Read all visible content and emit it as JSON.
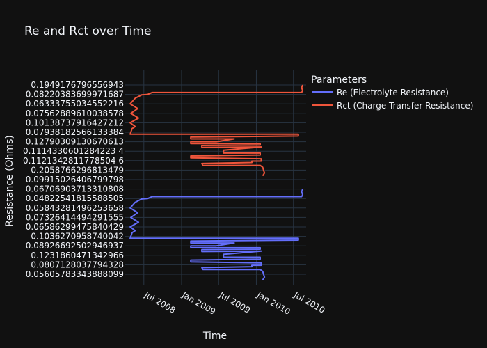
{
  "chart_data": {
    "type": "line",
    "title": "Re and Rct over Time",
    "xlabel": "Time",
    "ylabel": "Resistance (Ohms)",
    "legend_title": "Parameters",
    "legend_position": "top-right",
    "grid": true,
    "y_type": "category",
    "x_type": "date",
    "xlim": [
      "2008-04-01",
      "2010-09-01"
    ],
    "x_ticks": [
      "2008-07-01",
      "2009-01-01",
      "2009-07-01",
      "2010-01-01",
      "2010-07-01"
    ],
    "x_tick_labels": [
      "Jul 2008",
      "Jan 2009",
      "Jul 2009",
      "Jan 2010",
      "Jul 2010"
    ],
    "y_tick_labels": [
      "0.1949176796556943",
      "0.08220383699971687",
      "0.06333755034552216",
      "0.07562889610038578",
      "0.10138737916427212",
      "0.07938182566133384",
      "0.12790309130670613",
      "0.1114330601284223 4",
      "0.1121342811778504 6",
      "0.2058766296813479",
      "0.09915026406799798",
      "0.06706903713310808",
      "0.04822541815588505",
      "0.05843281496253658",
      "0.07326414494291555",
      "0.06586299475840429",
      "0.1036270958740042",
      "0.08926692502946937",
      "0.1231860471342966",
      "0.0807128037794328",
      "0.05605783343888099"
    ],
    "series": [
      {
        "name": "Re (Electrolyte Resistance)",
        "color": "#636efa",
        "path": [
          [
            "2010-08-15",
            11
          ],
          [
            "2010-08-10",
            11.3
          ],
          [
            "2010-08-15",
            11.6
          ],
          [
            "2010-08-10",
            11.8
          ],
          [
            "2008-08-10",
            11.8
          ],
          [
            "2008-07-20",
            12
          ],
          [
            "2008-06-20",
            12.05
          ],
          [
            "2008-05-20",
            12.4
          ],
          [
            "2008-04-25",
            13
          ],
          [
            "2008-06-01",
            13.5
          ],
          [
            "2008-04-28",
            14
          ],
          [
            "2008-06-05",
            14.5
          ],
          [
            "2008-04-25",
            15
          ],
          [
            "2008-05-20",
            15.4
          ],
          [
            "2008-05-05",
            15.6
          ],
          [
            "2008-04-25",
            16.2
          ],
          [
            "2010-07-25",
            16.2
          ],
          [
            "2010-07-25",
            16.4
          ],
          [
            "2009-02-15",
            16.5
          ],
          [
            "2009-02-15",
            16.7
          ],
          [
            "2009-09-15",
            16.7
          ],
          [
            "2009-06-20",
            17.0
          ],
          [
            "2009-02-15",
            17.0
          ],
          [
            "2009-02-15",
            17.2
          ],
          [
            "2010-01-20",
            17.2
          ],
          [
            "2010-01-20",
            17.35
          ],
          [
            "2009-04-10",
            17.4
          ],
          [
            "2009-04-10",
            17.6
          ],
          [
            "2010-01-25",
            17.55
          ],
          [
            "2009-07-25",
            17.9
          ],
          [
            "2009-07-25",
            18.2
          ],
          [
            "2010-01-20",
            18.2
          ],
          [
            "2010-01-20",
            18.4
          ],
          [
            "2009-02-15",
            18.5
          ],
          [
            "2009-02-15",
            18.7
          ],
          [
            "2010-01-25",
            18.8
          ],
          [
            "2010-01-25",
            19.05
          ],
          [
            "2009-12-10",
            19.05
          ],
          [
            "2009-12-10",
            19.2
          ],
          [
            "2009-04-10",
            19.3
          ],
          [
            "2009-04-15",
            19.5
          ],
          [
            "2010-01-20",
            19.5
          ],
          [
            "2010-02-01",
            19.7
          ],
          [
            "2010-02-05",
            20.0
          ],
          [
            "2010-02-10",
            20.3
          ],
          [
            "2010-02-01",
            20.6
          ]
        ]
      },
      {
        "name": "Rct (Charge Transfer Resistance)",
        "color": "#ef553b",
        "path": [
          [
            "2010-08-15",
            0
          ],
          [
            "2010-08-10",
            0.3
          ],
          [
            "2010-08-15",
            0.6
          ],
          [
            "2010-08-10",
            0.8
          ],
          [
            "2008-08-10",
            0.8
          ],
          [
            "2008-07-20",
            1
          ],
          [
            "2008-06-20",
            1.05
          ],
          [
            "2008-05-20",
            1.4
          ],
          [
            "2008-04-25",
            2
          ],
          [
            "2008-06-01",
            2.5
          ],
          [
            "2008-04-28",
            3
          ],
          [
            "2008-06-05",
            3.5
          ],
          [
            "2008-04-25",
            4
          ],
          [
            "2008-05-20",
            4.4
          ],
          [
            "2008-05-05",
            4.6
          ],
          [
            "2008-04-25",
            5.2
          ],
          [
            "2010-07-25",
            5.2
          ],
          [
            "2010-07-25",
            5.4
          ],
          [
            "2009-02-15",
            5.5
          ],
          [
            "2009-02-15",
            5.7
          ],
          [
            "2009-09-15",
            5.7
          ],
          [
            "2009-06-20",
            6.0
          ],
          [
            "2009-02-15",
            6.0
          ],
          [
            "2009-02-15",
            6.2
          ],
          [
            "2010-01-20",
            6.2
          ],
          [
            "2010-01-20",
            6.35
          ],
          [
            "2009-04-10",
            6.4
          ],
          [
            "2009-04-10",
            6.6
          ],
          [
            "2010-01-25",
            6.55
          ],
          [
            "2009-07-25",
            6.9
          ],
          [
            "2009-07-25",
            7.2
          ],
          [
            "2010-01-20",
            7.2
          ],
          [
            "2010-01-20",
            7.4
          ],
          [
            "2009-02-15",
            7.5
          ],
          [
            "2009-02-15",
            7.7
          ],
          [
            "2010-01-25",
            7.8
          ],
          [
            "2010-01-25",
            8.05
          ],
          [
            "2009-12-10",
            8.05
          ],
          [
            "2009-12-10",
            8.2
          ],
          [
            "2009-04-10",
            8.3
          ],
          [
            "2009-04-15",
            8.5
          ],
          [
            "2010-01-20",
            8.5
          ],
          [
            "2010-02-01",
            8.7
          ],
          [
            "2010-02-05",
            9.0
          ],
          [
            "2010-02-10",
            9.3
          ],
          [
            "2010-02-01",
            9.6
          ]
        ]
      }
    ]
  }
}
